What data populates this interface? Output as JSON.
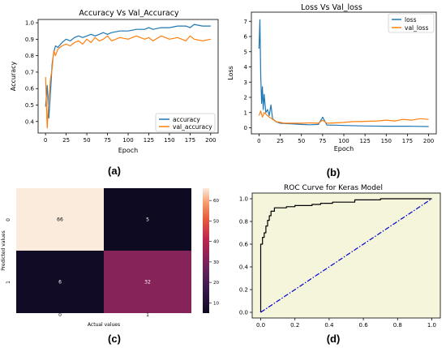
{
  "captions": {
    "a": "(a)",
    "b": "(b)",
    "c": "(c)",
    "d": "(d)"
  },
  "chart_data": [
    {
      "type": "line",
      "title": "Accuracy Vs Val_Accuracy",
      "xlabel": "Epoch",
      "ylabel": "Accuracy",
      "xlim": [
        -9,
        209
      ],
      "ylim": [
        0.33,
        1.02
      ],
      "xticks": [
        0,
        25,
        50,
        75,
        100,
        125,
        150,
        175,
        200
      ],
      "yticks": [
        0.4,
        0.5,
        0.6,
        0.7,
        0.8,
        0.9,
        1.0
      ],
      "legend": "lower-right",
      "series": [
        {
          "name": "accuracy",
          "color": "#1f77b4",
          "x": [
            0,
            2,
            4,
            6,
            8,
            10,
            12,
            15,
            20,
            25,
            30,
            35,
            40,
            45,
            50,
            55,
            60,
            65,
            70,
            75,
            80,
            90,
            100,
            110,
            120,
            125,
            130,
            140,
            150,
            160,
            170,
            175,
            180,
            190,
            200
          ],
          "y": [
            0.49,
            0.62,
            0.42,
            0.58,
            0.75,
            0.82,
            0.86,
            0.85,
            0.88,
            0.9,
            0.89,
            0.91,
            0.92,
            0.91,
            0.92,
            0.93,
            0.92,
            0.93,
            0.94,
            0.93,
            0.94,
            0.95,
            0.95,
            0.96,
            0.96,
            0.97,
            0.96,
            0.97,
            0.97,
            0.98,
            0.98,
            0.97,
            0.99,
            0.98,
            0.98
          ]
        },
        {
          "name": "val_accuracy",
          "color": "#ff7f0e",
          "x": [
            0,
            2,
            4,
            6,
            8,
            10,
            12,
            15,
            20,
            25,
            30,
            35,
            40,
            45,
            50,
            55,
            60,
            65,
            70,
            75,
            80,
            90,
            100,
            110,
            120,
            125,
            130,
            140,
            150,
            160,
            170,
            175,
            180,
            190,
            200
          ],
          "y": [
            0.67,
            0.36,
            0.55,
            0.66,
            0.72,
            0.83,
            0.8,
            0.84,
            0.86,
            0.87,
            0.86,
            0.88,
            0.89,
            0.87,
            0.9,
            0.88,
            0.91,
            0.89,
            0.9,
            0.92,
            0.89,
            0.91,
            0.9,
            0.92,
            0.9,
            0.91,
            0.89,
            0.92,
            0.9,
            0.91,
            0.89,
            0.92,
            0.9,
            0.89,
            0.9
          ]
        }
      ]
    },
    {
      "type": "line",
      "title": "Loss Vs Val_loss",
      "xlabel": "Epoch",
      "ylabel": "Loss",
      "xlim": [
        -9,
        209
      ],
      "ylim": [
        -0.4,
        7.6
      ],
      "xticks": [
        0,
        25,
        50,
        75,
        100,
        125,
        150,
        175,
        200
      ],
      "yticks": [
        0,
        1,
        2,
        3,
        4,
        5,
        6,
        7
      ],
      "legend": "top-right",
      "series": [
        {
          "name": "loss",
          "color": "#1f77b4",
          "x": [
            0,
            1,
            2,
            3,
            4,
            5,
            6,
            8,
            10,
            12,
            14,
            16,
            18,
            20,
            25,
            30,
            40,
            50,
            60,
            70,
            75,
            80,
            90,
            100,
            125,
            150,
            175,
            200
          ],
          "y": [
            5.2,
            7.1,
            3.5,
            1.6,
            2.7,
            1.2,
            2.2,
            1.0,
            1.2,
            0.8,
            1.5,
            0.6,
            0.5,
            0.4,
            0.3,
            0.28,
            0.25,
            0.22,
            0.2,
            0.22,
            0.7,
            0.18,
            0.17,
            0.15,
            0.12,
            0.1,
            0.1,
            0.08
          ]
        },
        {
          "name": "val_loss",
          "color": "#ff7f0e",
          "x": [
            0,
            2,
            4,
            6,
            8,
            10,
            12,
            15,
            20,
            25,
            30,
            40,
            50,
            60,
            70,
            75,
            80,
            90,
            100,
            110,
            125,
            140,
            150,
            160,
            170,
            180,
            190,
            200
          ],
          "y": [
            0.8,
            1.1,
            0.7,
            1.0,
            0.9,
            0.8,
            0.7,
            0.6,
            0.4,
            0.35,
            0.3,
            0.3,
            0.3,
            0.32,
            0.3,
            0.5,
            0.3,
            0.32,
            0.35,
            0.4,
            0.42,
            0.45,
            0.5,
            0.45,
            0.55,
            0.5,
            0.6,
            0.55
          ]
        }
      ]
    },
    {
      "type": "heatmap",
      "xlabel": "Actual values",
      "ylabel": "Predicted values",
      "xticklabels": [
        "0",
        "1"
      ],
      "yticklabels": [
        "0",
        "1"
      ],
      "cells": [
        [
          66,
          5
        ],
        [
          6,
          32
        ]
      ],
      "colorbar_ticks": [
        10,
        20,
        30,
        40,
        50,
        60
      ],
      "colorbar_range": [
        5,
        66
      ]
    },
    {
      "type": "line",
      "title": "ROC Curve for Keras Model",
      "xlim": [
        -0.05,
        1.05
      ],
      "ylim": [
        -0.05,
        1.05
      ],
      "xticks": [
        0.0,
        0.2,
        0.4,
        0.6,
        0.8,
        1.0
      ],
      "yticks": [
        0.0,
        0.2,
        0.4,
        0.6,
        0.8,
        1.0
      ],
      "background": "#f5f5dc",
      "series": [
        {
          "color": "#000000",
          "x": [
            0,
            0,
            0.01,
            0.01,
            0.02,
            0.02,
            0.03,
            0.03,
            0.04,
            0.04,
            0.05,
            0.05,
            0.06,
            0.06,
            0.08,
            0.08,
            0.15,
            0.15,
            0.2,
            0.2,
            0.3,
            0.3,
            0.35,
            0.35,
            0.42,
            0.42,
            0.55,
            0.55,
            0.7,
            0.7,
            1.0
          ],
          "y": [
            0,
            0.6,
            0.6,
            0.66,
            0.66,
            0.7,
            0.7,
            0.76,
            0.76,
            0.81,
            0.81,
            0.85,
            0.85,
            0.89,
            0.89,
            0.92,
            0.92,
            0.93,
            0.93,
            0.94,
            0.94,
            0.95,
            0.95,
            0.96,
            0.96,
            0.97,
            0.97,
            0.99,
            0.99,
            1.0,
            1.0
          ]
        },
        {
          "color": "#0000cd",
          "dash": "dashdot",
          "x": [
            0,
            1.0
          ],
          "y": [
            0,
            1.0
          ]
        }
      ]
    }
  ]
}
